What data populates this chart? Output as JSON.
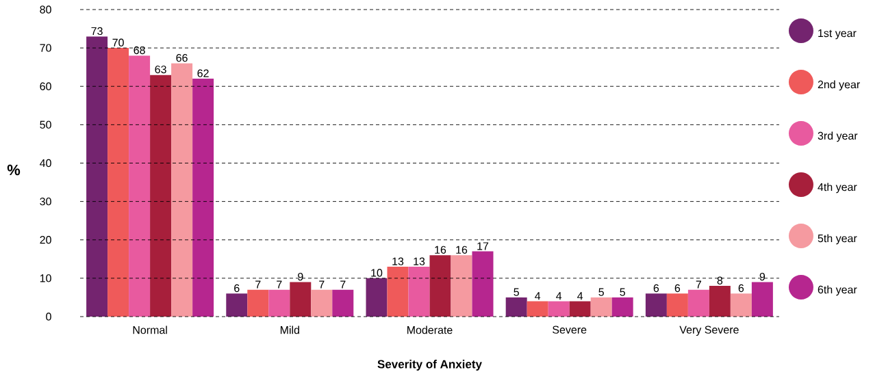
{
  "chart_data": {
    "type": "bar",
    "xlabel": "Severity of Anxiety",
    "ylabel": "%",
    "categories": [
      "Normal",
      "Mild",
      "Moderate",
      "Severe",
      "Very Severe"
    ],
    "series": [
      {
        "name": "1st year",
        "color": "#74246f",
        "values": [
          73,
          6,
          10,
          5,
          6
        ]
      },
      {
        "name": "2nd year",
        "color": "#ef5a5a",
        "values": [
          70,
          7,
          13,
          4,
          6
        ]
      },
      {
        "name": "3rd year",
        "color": "#e85a9f",
        "values": [
          68,
          7,
          13,
          4,
          7
        ]
      },
      {
        "name": "4th year",
        "color": "#a71f3b",
        "values": [
          63,
          9,
          16,
          4,
          8
        ]
      },
      {
        "name": "5th year",
        "color": "#f59aa0",
        "values": [
          66,
          7,
          16,
          5,
          6
        ]
      },
      {
        "name": "6th year",
        "color": "#b6268f",
        "values": [
          62,
          7,
          17,
          5,
          9
        ]
      }
    ],
    "ylim": [
      0,
      80
    ],
    "yticks": [
      0,
      10,
      20,
      30,
      40,
      50,
      60,
      70,
      80
    ],
    "grid": "y",
    "legend": "right",
    "data_labels": true
  }
}
